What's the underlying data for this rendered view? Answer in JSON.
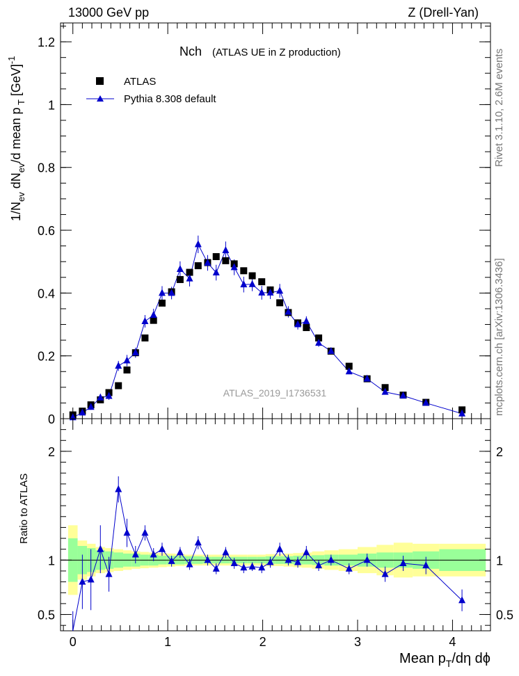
{
  "header": {
    "left": "13000 GeV pp",
    "right": "Z (Drell-Yan)"
  },
  "side_labels": {
    "rivet": "Rivet 3.1.10, 2.6M events",
    "mcplots": "mcplots.cern.ch [arXiv:1306.3436]"
  },
  "colors": {
    "mc": "#0000cc",
    "data": "#000000",
    "band_inner": "#99ff99",
    "band_outer": "#ffff99"
  },
  "chart_data": [
    {
      "type": "scatter",
      "title": "Nch",
      "subtitle": "(ATLAS UE in Z production)",
      "ylabel": "1/N_ev dN_ev/d mean p_T [GeV]^-1",
      "watermark": "ATLAS_2019_I1736531",
      "xlim": [
        -0.13,
        4.4
      ],
      "ylim": [
        0,
        1.26
      ],
      "yticks": [
        "0",
        "0.2",
        "0.4",
        "0.6",
        "0.8",
        "1",
        "1.2"
      ],
      "legend_position": "top-left",
      "legend": {
        "data": "ATLAS",
        "mc": "Pythia 8.308 default"
      },
      "data_series": {
        "name": "ATLAS",
        "x": [
          0.0,
          0.1,
          0.19,
          0.29,
          0.38,
          0.48,
          0.57,
          0.66,
          0.76,
          0.85,
          0.94,
          1.04,
          1.13,
          1.23,
          1.32,
          1.42,
          1.51,
          1.61,
          1.7,
          1.8,
          1.89,
          1.99,
          2.08,
          2.18,
          2.27,
          2.37,
          2.46,
          2.59,
          2.72,
          2.91,
          3.1,
          3.29,
          3.48,
          3.72,
          4.1
        ],
        "y": [
          0.012,
          0.024,
          0.044,
          0.06,
          0.083,
          0.105,
          0.155,
          0.21,
          0.257,
          0.313,
          0.368,
          0.404,
          0.443,
          0.466,
          0.487,
          0.497,
          0.516,
          0.503,
          0.493,
          0.471,
          0.455,
          0.436,
          0.41,
          0.369,
          0.338,
          0.305,
          0.29,
          0.257,
          0.215,
          0.167,
          0.127,
          0.099,
          0.075,
          0.052,
          0.028
        ]
      },
      "mc_series": {
        "name": "Pythia 8.308 default",
        "x": [
          0.0,
          0.1,
          0.19,
          0.29,
          0.38,
          0.48,
          0.57,
          0.66,
          0.76,
          0.85,
          0.94,
          1.04,
          1.13,
          1.23,
          1.32,
          1.42,
          1.51,
          1.61,
          1.7,
          1.8,
          1.89,
          1.99,
          2.08,
          2.18,
          2.27,
          2.37,
          2.46,
          2.59,
          2.72,
          2.91,
          3.1,
          3.29,
          3.48,
          3.72,
          4.1
        ],
        "y": [
          0.004,
          0.019,
          0.037,
          0.067,
          0.072,
          0.168,
          0.185,
          0.21,
          0.31,
          0.33,
          0.4,
          0.4,
          0.476,
          0.446,
          0.555,
          0.496,
          0.465,
          0.536,
          0.482,
          0.427,
          0.428,
          0.401,
          0.401,
          0.407,
          0.34,
          0.3,
          0.31,
          0.241,
          0.215,
          0.15,
          0.127,
          0.085,
          0.073,
          0.05,
          0.016
        ],
        "err": [
          0.003,
          0.007,
          0.009,
          0.012,
          0.012,
          0.016,
          0.018,
          0.016,
          0.02,
          0.02,
          0.022,
          0.02,
          0.025,
          0.025,
          0.028,
          0.025,
          0.025,
          0.028,
          0.025,
          0.025,
          0.022,
          0.022,
          0.02,
          0.022,
          0.018,
          0.016,
          0.016,
          0.012,
          0.01,
          0.008,
          0.007,
          0.006,
          0.005,
          0.004,
          0.004
        ]
      }
    },
    {
      "type": "scatter",
      "ylabel": "Ratio to ATLAS",
      "xlabel": "Mean p_T/dη dϕ",
      "xlim": [
        -0.13,
        4.4
      ],
      "ylim": [
        0.35,
        2.3
      ],
      "yticks": [
        "0.5",
        "1",
        "2"
      ],
      "xticks": [
        "0",
        "1",
        "2",
        "3",
        "4"
      ],
      "reference_line": 1,
      "ratio": {
        "x": [
          0.0,
          0.1,
          0.19,
          0.29,
          0.38,
          0.48,
          0.57,
          0.66,
          0.76,
          0.85,
          0.94,
          1.04,
          1.13,
          1.23,
          1.32,
          1.42,
          1.51,
          1.61,
          1.7,
          1.8,
          1.89,
          1.99,
          2.08,
          2.18,
          2.27,
          2.37,
          2.46,
          2.59,
          2.72,
          2.91,
          3.1,
          3.29,
          3.48,
          3.72,
          4.1
        ],
        "y": [
          0.33,
          0.8,
          0.82,
          1.1,
          0.87,
          1.65,
          1.25,
          1.05,
          1.25,
          1.05,
          1.1,
          0.99,
          1.07,
          0.96,
          1.16,
          1.0,
          0.92,
          1.07,
          0.97,
          0.93,
          0.94,
          0.93,
          0.98,
          1.1,
          1.0,
          0.98,
          1.07,
          0.95,
          1.0,
          0.92,
          1.0,
          0.87,
          0.97,
          0.95,
          0.63
        ],
        "err": [
          0.2,
          0.25,
          0.28,
          0.22,
          0.16,
          0.12,
          0.13,
          0.08,
          0.07,
          0.06,
          0.06,
          0.05,
          0.05,
          0.05,
          0.06,
          0.05,
          0.05,
          0.05,
          0.05,
          0.05,
          0.04,
          0.05,
          0.05,
          0.06,
          0.05,
          0.05,
          0.06,
          0.05,
          0.05,
          0.05,
          0.06,
          0.07,
          0.07,
          0.08,
          0.1
        ]
      },
      "band_edges": [
        -0.05,
        0.05,
        0.15,
        0.24,
        0.34,
        0.43,
        0.53,
        0.62,
        0.71,
        0.8,
        0.9,
        0.99,
        1.08,
        1.18,
        1.27,
        1.37,
        1.46,
        1.56,
        1.65,
        1.75,
        1.84,
        1.94,
        2.03,
        2.13,
        2.22,
        2.32,
        2.41,
        2.52,
        2.65,
        2.8,
        3.0,
        3.2,
        3.38,
        3.58,
        3.86,
        4.35
      ],
      "band_inner": [
        0.2,
        0.13,
        0.11,
        0.09,
        0.08,
        0.07,
        0.06,
        0.06,
        0.05,
        0.05,
        0.04,
        0.04,
        0.04,
        0.035,
        0.035,
        0.03,
        0.03,
        0.03,
        0.03,
        0.03,
        0.03,
        0.03,
        0.035,
        0.035,
        0.035,
        0.04,
        0.04,
        0.045,
        0.05,
        0.05,
        0.06,
        0.07,
        0.07,
        0.08,
        0.1
      ],
      "band_outer": [
        0.32,
        0.18,
        0.15,
        0.12,
        0.11,
        0.1,
        0.09,
        0.08,
        0.075,
        0.07,
        0.065,
        0.06,
        0.055,
        0.05,
        0.05,
        0.05,
        0.05,
        0.05,
        0.05,
        0.05,
        0.05,
        0.05,
        0.055,
        0.055,
        0.06,
        0.065,
        0.07,
        0.08,
        0.09,
        0.1,
        0.12,
        0.14,
        0.16,
        0.15,
        0.15
      ]
    }
  ]
}
